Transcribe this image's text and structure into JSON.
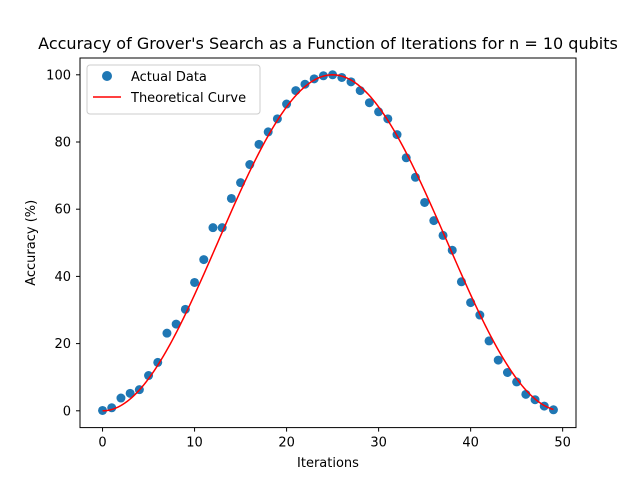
{
  "chart_data": {
    "type": "scatter",
    "title": "Accuracy of Grover's Search as a Function of Iterations for n = 10 qubits",
    "xlabel": "Iterations",
    "ylabel": "Accuracy (%)",
    "xlim": [
      -2.45,
      51.45
    ],
    "ylim": [
      -5,
      105
    ],
    "xticks": [
      0,
      10,
      20,
      30,
      40,
      50
    ],
    "yticks": [
      0,
      20,
      40,
      60,
      80,
      100
    ],
    "grid": false,
    "legend_position": "top-left",
    "series": [
      {
        "name": "Actual Data",
        "kind": "scatter",
        "color": "#1f77b4",
        "x": [
          0,
          1,
          2,
          3,
          4,
          5,
          6,
          7,
          8,
          9,
          10,
          11,
          12,
          13,
          14,
          15,
          16,
          17,
          18,
          19,
          20,
          21,
          22,
          23,
          24,
          25,
          26,
          27,
          28,
          29,
          30,
          31,
          32,
          33,
          34,
          35,
          36,
          37,
          38,
          39,
          40,
          41,
          42,
          43,
          44,
          45,
          46,
          47,
          48,
          49
        ],
        "y": [
          0.1,
          0.9,
          3.8,
          5.2,
          6.3,
          10.5,
          14.4,
          23.1,
          25.8,
          30.2,
          38.2,
          45.0,
          54.5,
          54.5,
          63.2,
          67.9,
          73.3,
          79.3,
          83.0,
          86.9,
          91.3,
          95.3,
          97.2,
          98.8,
          99.7,
          100.0,
          99.2,
          97.9,
          95.3,
          91.7,
          89.0,
          86.9,
          82.2,
          75.3,
          69.5,
          62.0,
          56.6,
          52.2,
          47.8,
          38.4,
          32.2,
          28.5,
          20.8,
          15.1,
          11.4,
          8.6,
          4.9,
          3.3,
          1.4,
          0.3
        ]
      },
      {
        "name": "Theoretical Curve",
        "kind": "line",
        "color": "#ff0000",
        "x_range": [
          0,
          49
        ],
        "peak_x": 25,
        "peak_y": 100,
        "formula": "100 * sin^2(pi * x / 50)"
      }
    ]
  }
}
